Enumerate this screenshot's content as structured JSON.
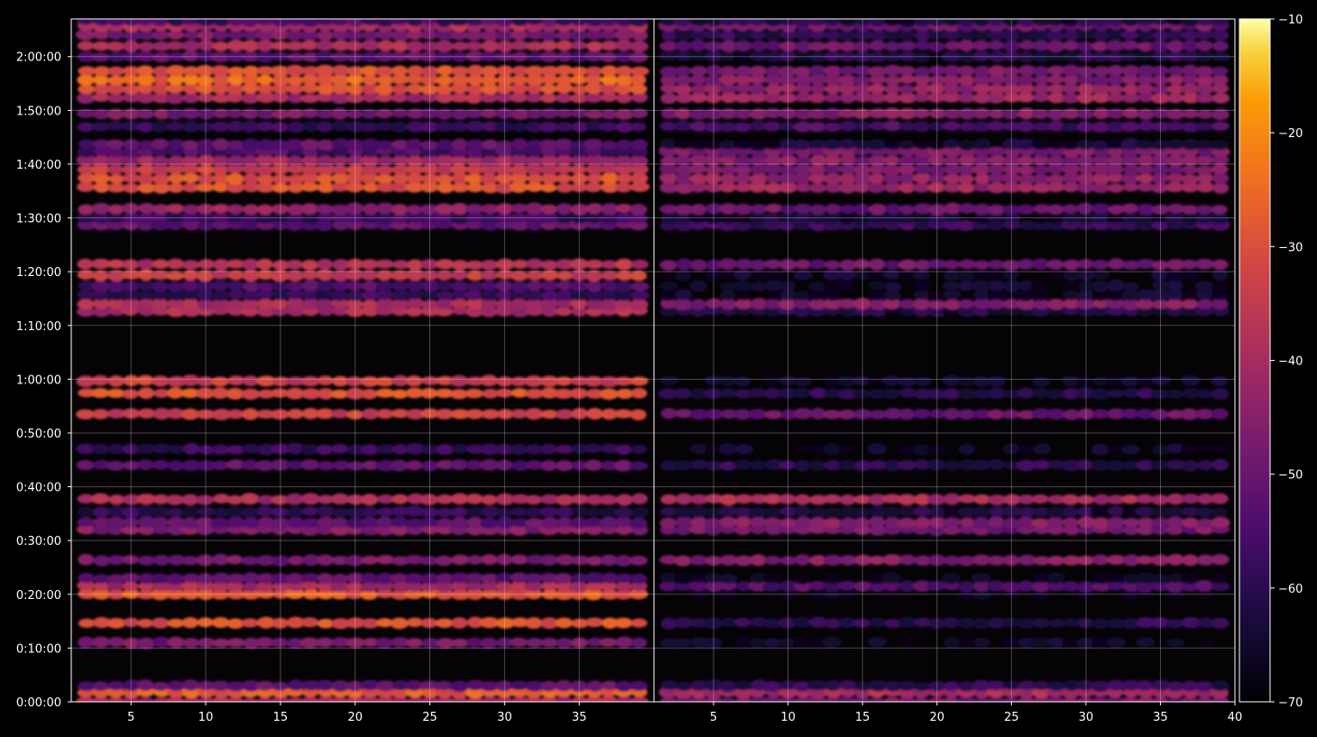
{
  "chart_data": {
    "type": "heatmap",
    "colormap": "inferno",
    "background": "#000000",
    "panels": [
      {
        "name": "",
        "x_range": [
          1,
          40
        ],
        "x_ticks": [
          5,
          10,
          15,
          20,
          25,
          30,
          35
        ],
        "x_tick_labels": [
          "5",
          "10",
          "15",
          "20",
          "25",
          "30",
          "35"
        ],
        "band_level_db": [
          -40,
          -28,
          -52,
          -48,
          -30,
          -28,
          -40,
          -52,
          -48,
          -46,
          -52,
          -60,
          -40,
          -52,
          -58,
          -34,
          -30,
          -34,
          -40,
          -40,
          -58,
          -55,
          -34,
          -38,
          -52,
          -58,
          -44,
          -30,
          -30,
          -34,
          -42,
          -55,
          -52,
          -58,
          -48,
          -40,
          -30,
          -26,
          -30,
          -52,
          -40,
          -48,
          -40,
          -56
        ],
        "grid": true
      },
      {
        "name": "",
        "x_range": [
          1,
          40
        ],
        "x_ticks": [
          5,
          10,
          15,
          20,
          25,
          30,
          35,
          40
        ],
        "x_tick_labels": [
          "5",
          "10",
          "15",
          "20",
          "25",
          "30",
          "35",
          "40"
        ],
        "band_level_db": [
          -48,
          -40,
          -60,
          -66,
          -60,
          -70,
          -54,
          -68,
          -46,
          -48,
          -46,
          -62,
          -40,
          -60,
          -66,
          -50,
          -60,
          -66,
          -62,
          -46,
          -66,
          -66,
          -66,
          -50,
          -58,
          -64,
          -50,
          -42,
          -44,
          -48,
          -46,
          -48,
          -64,
          -56,
          -46,
          -42,
          -44,
          -46,
          -48,
          -62,
          -50,
          -60,
          -50,
          -62
        ],
        "grid": true
      }
    ],
    "band_times": [
      "0:00:00",
      "0:01:45",
      "0:03:00",
      "0:11:00",
      "0:14:40",
      "0:20:00",
      "0:21:30",
      "0:23:00",
      "0:26:20",
      "0:32:00",
      "0:33:20",
      "0:35:20",
      "0:37:40",
      "0:44:00",
      "0:47:00",
      "0:53:30",
      "0:57:20",
      "0:59:40",
      "1:12:40",
      "1:14:00",
      "1:15:40",
      "1:17:20",
      "1:19:20",
      "1:21:20",
      "1:28:40",
      "1:30:00",
      "1:31:40",
      "1:35:40",
      "1:37:20",
      "1:39:00",
      "1:40:40",
      "1:42:20",
      "1:43:40",
      "1:47:00",
      "1:49:20",
      "1:52:20",
      "1:54:00",
      "1:55:40",
      "1:57:20",
      "2:00:00",
      "2:02:00",
      "2:04:00",
      "2:05:40",
      "2:06:40"
    ],
    "y_range_seconds": [
      0,
      7620
    ],
    "y_ticks": [
      "0:00:00",
      "0:10:00",
      "0:20:00",
      "0:30:00",
      "0:40:00",
      "0:50:00",
      "1:00:00",
      "1:10:00",
      "1:20:00",
      "1:30:00",
      "1:40:00",
      "1:50:00",
      "2:00:00"
    ],
    "colorbar": {
      "range": [
        -70,
        -10
      ],
      "ticks": [
        -10,
        -20,
        -30,
        -40,
        -50,
        -60,
        -70
      ],
      "tick_labels": [
        "−10",
        "−20",
        "−30",
        "−40",
        "−50",
        "−60",
        "−70"
      ]
    }
  }
}
